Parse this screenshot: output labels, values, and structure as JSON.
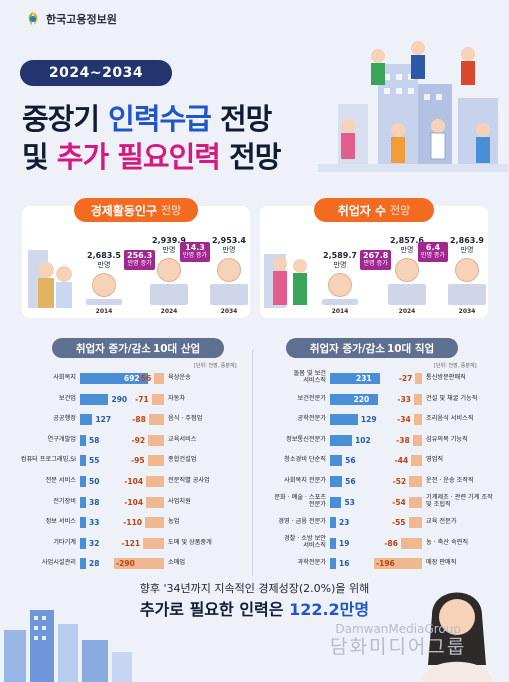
{
  "logo": {
    "text": "한국고용정보원"
  },
  "header": {
    "badge": "2024~2034",
    "title_line1_a": "중장기 ",
    "title_line1_b": "인력수급",
    "title_line1_c": " 전망",
    "title_line2_a": "및 ",
    "title_line2_b": "추가 필요인력",
    "title_line2_c": " 전망"
  },
  "econ_panel": {
    "title": "경제활동인구",
    "subtitle": "전망",
    "points": [
      {
        "year": "2014",
        "value": "2,683.5",
        "unit": "만명"
      },
      {
        "year": "2024",
        "value": "2,939.9",
        "unit": "만명"
      },
      {
        "year": "2034",
        "value": "2,953.4",
        "unit": "만명"
      }
    ],
    "increases": [
      {
        "value": "256.3",
        "label": "만명 증가"
      },
      {
        "value": "14.3",
        "label": "만명 증가"
      }
    ]
  },
  "emp_panel": {
    "title": "취업자 수",
    "subtitle": "전망",
    "points": [
      {
        "year": "2014",
        "value": "2,589.7",
        "unit": "만명"
      },
      {
        "year": "2024",
        "value": "2,857.6",
        "unit": "만명"
      },
      {
        "year": "2034",
        "value": "2,863.9",
        "unit": "만명"
      }
    ],
    "increases": [
      {
        "value": "267.8",
        "label": "만명 증가"
      },
      {
        "value": "6.4",
        "label": "만명 증가"
      }
    ]
  },
  "industry": {
    "title_a": "취업자 증가/감소 ",
    "title_b": "10대 산업",
    "unit": "[단위: 천명, 증분계]",
    "increase": [
      {
        "label": "사회복지",
        "value": 692
      },
      {
        "label": "보건업",
        "value": 290
      },
      {
        "label": "공공행정",
        "value": 127
      },
      {
        "label": "연구개발업",
        "value": 58
      },
      {
        "label": "컴퓨터 프로그래밍,SI",
        "value": 55
      },
      {
        "label": "전문 서비스",
        "value": 50
      },
      {
        "label": "전기장비",
        "value": 38
      },
      {
        "label": "정보 서비스",
        "value": 33
      },
      {
        "label": "기타기계",
        "value": 32
      },
      {
        "label": "사업시설관리",
        "value": 28
      }
    ],
    "decrease": [
      {
        "label": "육상운송",
        "value": -56
      },
      {
        "label": "자동차",
        "value": -71
      },
      {
        "label": "음식 · 주점업",
        "value": -88
      },
      {
        "label": "교육서비스",
        "value": -92
      },
      {
        "label": "종합건설업",
        "value": -95
      },
      {
        "label": "전문직별 공사업",
        "value": -104
      },
      {
        "label": "사업지원",
        "value": -104
      },
      {
        "label": "농업",
        "value": -110
      },
      {
        "label": "도매 및 상품중개",
        "value": -121
      },
      {
        "label": "소매업",
        "value": -290
      }
    ]
  },
  "occupation": {
    "title_a": "취업자 증가/감소 ",
    "title_b": "10대 직업",
    "unit": "[단위: 천명, 증분계]",
    "increase": [
      {
        "label": "돌봄 및 보건\n서비스직",
        "value": 231
      },
      {
        "label": "보건전문가",
        "value": 220
      },
      {
        "label": "공학전문가",
        "value": 129
      },
      {
        "label": "정보통신전문가",
        "value": 102
      },
      {
        "label": "청소경비 단순직",
        "value": 56
      },
      {
        "label": "사회복지 전문가",
        "value": 56
      },
      {
        "label": "문화 · 예술 · 스포츠\n전문가",
        "value": 53
      },
      {
        "label": "경영 · 금융 전문가",
        "value": 23
      },
      {
        "label": "경찰 · 소방 보안\n서비스직",
        "value": 19
      },
      {
        "label": "과학전문가",
        "value": 16
      }
    ],
    "decrease": [
      {
        "label": "통신방문판매직",
        "value": -27
      },
      {
        "label": "건설 및 채굴 기능직",
        "value": -33
      },
      {
        "label": "조리음식 서비스직",
        "value": -34
      },
      {
        "label": "섬유의복 기능직",
        "value": -38
      },
      {
        "label": "영업직",
        "value": -44
      },
      {
        "label": "운전 · 운송 조작직",
        "value": -52
      },
      {
        "label": "기계제조 · 관련 기계 조작\n및 조립직",
        "value": -54
      },
      {
        "label": "교육 전문가",
        "value": -55
      },
      {
        "label": "농 · 축산 숙련직",
        "value": -86
      },
      {
        "label": "매장 판매직",
        "value": -196
      }
    ]
  },
  "footer": {
    "line1": "향후 '34년까지 지속적인 경제성장(2.0%)을 위해",
    "line2_a": "추가로 필요한 인력은 ",
    "line2_b": "122.2만명"
  },
  "watermark": {
    "en": "DamwanMediaGroup",
    "ko": "담화미디어그룹"
  },
  "colors": {
    "increase": "#4a8fd6",
    "decrease": "#f0b891",
    "accent": "#f36b21",
    "navy": "#22356e"
  }
}
